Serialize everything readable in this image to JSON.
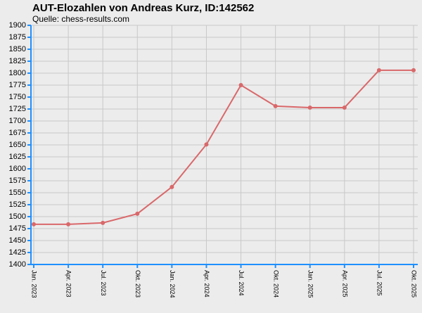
{
  "chart_data": {
    "type": "line",
    "title": "AUT-Elozahlen von Andreas Kurz, ID:142562",
    "subtitle": "Quelle: chess-results.com",
    "categories": [
      "Jan. 2023",
      "Apr. 2023",
      "Jul. 2023",
      "Okt. 2023",
      "Jan. 2024",
      "Apr. 2024",
      "Jul. 2024",
      "Okt. 2024",
      "Jan. 2025",
      "Apr. 2025",
      "Jul. 2025",
      "Okt. 2025"
    ],
    "series": [
      {
        "name": "Elo",
        "color": "#d9686a",
        "values": [
          1484,
          1484,
          1487,
          1506,
          1562,
          1651,
          1775,
          1731,
          1728,
          1728,
          1806,
          1806
        ]
      }
    ],
    "ylim": [
      1400,
      1900
    ],
    "yticks": [
      1400,
      1425,
      1450,
      1475,
      1500,
      1525,
      1550,
      1575,
      1600,
      1625,
      1650,
      1675,
      1700,
      1725,
      1750,
      1775,
      1800,
      1825,
      1850,
      1875,
      1900
    ],
    "grid": true
  }
}
